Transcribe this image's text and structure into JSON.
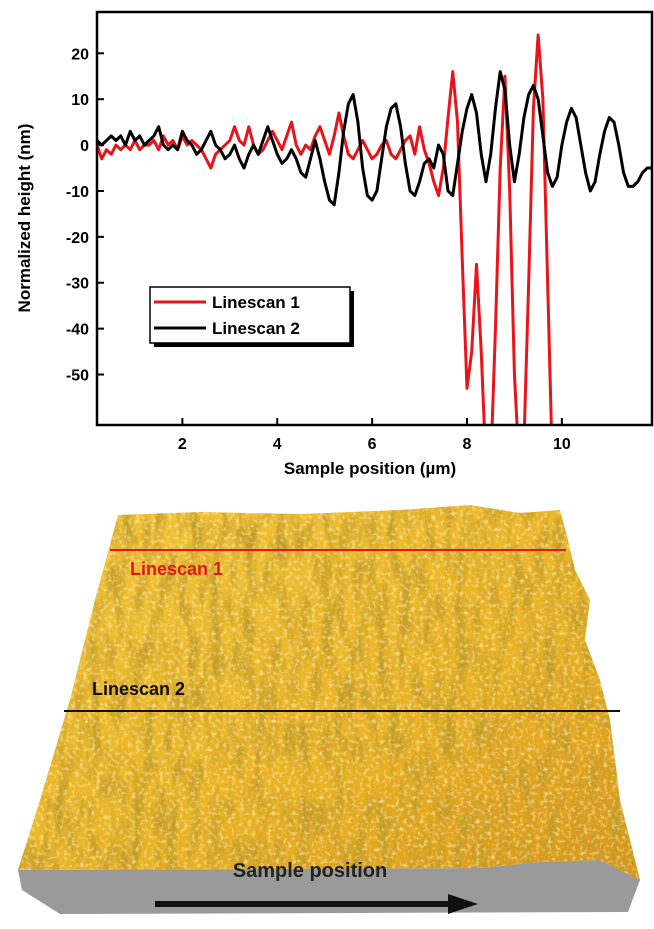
{
  "chart_data": {
    "type": "line",
    "x_label": "Sample position (µm)",
    "y_label": "Normalized height (nm)",
    "xlim": [
      0.2,
      11.9
    ],
    "ylim": [
      -61,
      29
    ],
    "xticks": [
      2,
      4,
      6,
      8,
      10
    ],
    "yticks": [
      -50,
      -40,
      -30,
      -20,
      -10,
      0,
      10,
      20
    ],
    "legend": "lower-left",
    "x": [
      0.2,
      0.3,
      0.4,
      0.5,
      0.6,
      0.7,
      0.8,
      0.9,
      1.0,
      1.1,
      1.2,
      1.3,
      1.4,
      1.5,
      1.6,
      1.7,
      1.8,
      1.9,
      2.0,
      2.1,
      2.2,
      2.3,
      2.4,
      2.5,
      2.6,
      2.7,
      2.8,
      2.9,
      3.0,
      3.1,
      3.2,
      3.3,
      3.4,
      3.5,
      3.6,
      3.7,
      3.8,
      3.9,
      4.0,
      4.1,
      4.2,
      4.3,
      4.4,
      4.5,
      4.6,
      4.7,
      4.8,
      4.9,
      5.0,
      5.1,
      5.2,
      5.3,
      5.4,
      5.5,
      5.6,
      5.7,
      5.8,
      5.9,
      6.0,
      6.1,
      6.2,
      6.3,
      6.4,
      6.5,
      6.6,
      6.7,
      6.8,
      6.9,
      7.0,
      7.1,
      7.2,
      7.3,
      7.4,
      7.5,
      7.6,
      7.7,
      7.8,
      7.9,
      8.0,
      8.1,
      8.2,
      8.3,
      8.4,
      8.5,
      8.6,
      8.7,
      8.8,
      8.9,
      9.0,
      9.1,
      9.2,
      9.3,
      9.4,
      9.5,
      9.6,
      9.7,
      9.8,
      9.9,
      10.0,
      10.1,
      10.2,
      10.3,
      10.4,
      10.5,
      10.6,
      10.7,
      10.8,
      10.9,
      11.0,
      11.1,
      11.2,
      11.3,
      11.4,
      11.5,
      11.6,
      11.7,
      11.8,
      11.9
    ],
    "series": [
      {
        "name": "Linescan 1",
        "color": "#e8141b",
        "values": [
          0,
          -3,
          -1,
          -2,
          0,
          -1,
          0,
          -1,
          1,
          -1,
          0,
          0,
          1,
          -1,
          2,
          0,
          1,
          -1,
          2,
          0,
          1,
          0,
          -1,
          -3,
          -5,
          -2,
          -1,
          0,
          1,
          4,
          1,
          0,
          4,
          0,
          -2,
          -1,
          1,
          3,
          1,
          -1,
          2,
          5,
          0,
          -2,
          0,
          -1,
          2,
          4,
          1,
          -2,
          2,
          7,
          2,
          -2,
          -3,
          -1,
          1,
          -1,
          -3,
          -2,
          0,
          1,
          -2,
          -3,
          -1,
          1,
          2,
          -2,
          4,
          -1,
          -4,
          -8,
          -11,
          -5,
          6,
          16,
          5,
          -25,
          -53,
          -45,
          -26,
          -45,
          -70,
          -70,
          -40,
          -5,
          15,
          -10,
          -50,
          -70,
          -65,
          -30,
          8,
          24,
          10,
          -30,
          -70,
          null,
          null,
          null,
          null,
          null,
          null,
          null,
          null,
          null,
          null,
          null,
          null,
          null,
          null,
          null,
          null,
          null,
          null,
          null,
          null,
          null
        ]
      },
      {
        "name": "Linescan 2",
        "color": "#000000",
        "values": [
          1,
          0,
          1,
          2,
          1,
          2,
          0,
          3,
          1,
          2,
          0,
          1,
          2,
          4,
          0,
          -1,
          0,
          -1,
          3,
          1,
          0,
          -2,
          -1,
          1,
          3,
          0,
          -1,
          -3,
          -2,
          0,
          -3,
          -5,
          -2,
          0,
          -2,
          1,
          4,
          1,
          -2,
          -4,
          -3,
          -1,
          -3,
          -6,
          -7,
          -3,
          1,
          -3,
          -8,
          -12,
          -13,
          -6,
          3,
          9,
          11,
          5,
          -5,
          -11,
          -12,
          -10,
          -3,
          4,
          8,
          9,
          4,
          -4,
          -10,
          -11,
          -8,
          -4,
          -3,
          -5,
          0,
          -2,
          -10,
          -11,
          -4,
          3,
          8,
          11,
          7,
          -2,
          -8,
          -2,
          8,
          16,
          12,
          0,
          -8,
          -2,
          6,
          11,
          13,
          10,
          2,
          -6,
          -9,
          -7,
          0,
          5,
          8,
          6,
          0,
          -6,
          -10,
          -8,
          -2,
          3,
          6,
          5,
          0,
          -6,
          -9,
          -9,
          -8,
          -6,
          -5,
          -5
        ]
      }
    ]
  },
  "image": {
    "line_labels": [
      "Linescan 1",
      "Linescan 2"
    ],
    "arrow_label": "Sample position"
  }
}
